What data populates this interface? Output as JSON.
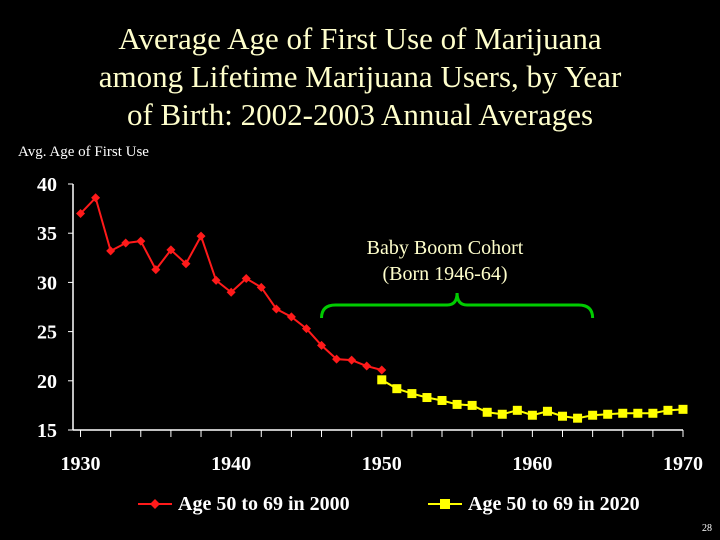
{
  "slide": {
    "title_lines": [
      "Average Age of First Use of Marijuana",
      "among Lifetime Marijuana Users, by Year",
      "of Birth: 2002-2003 Annual Averages"
    ],
    "ylabel": "Avg. Age of First Use",
    "callout_lines": [
      "Baby Boom Cohort",
      "(Born 1946-64)"
    ],
    "slide_number": "28"
  },
  "colors": {
    "background": "#000000",
    "series1": "#ff1a1a",
    "series2": "#ffff00",
    "bracket": "#00cc00",
    "axis": "#ffffff"
  },
  "chart_data": {
    "type": "line",
    "title": "Average Age of First Use of Marijuana among Lifetime Marijuana Users, by Year of Birth: 2002-2003 Annual Averages",
    "ylabel": "Avg. Age of First Use",
    "xlabel": "",
    "xlim": [
      1929.5,
      1970
    ],
    "ylim": [
      15,
      40
    ],
    "x_ticks": [
      "1930",
      "1940",
      "1950",
      "1960",
      "1970"
    ],
    "y_ticks": [
      "40",
      "35",
      "30",
      "25",
      "20",
      "15"
    ],
    "grid": false,
    "legend_position": "bottom",
    "series": [
      {
        "name": "Age 50 to 69 in 2000",
        "marker": "diamond",
        "x": [
          1930,
          1931,
          1932,
          1933,
          1934,
          1935,
          1936,
          1937,
          1938,
          1939,
          1940,
          1941,
          1942,
          1943,
          1944,
          1945,
          1946,
          1947,
          1948,
          1949,
          1950
        ],
        "y": [
          37.0,
          38.6,
          33.2,
          34.0,
          34.2,
          31.3,
          33.3,
          31.9,
          34.7,
          30.2,
          29.0,
          30.4,
          29.5,
          27.3,
          26.5,
          25.3,
          23.6,
          22.2,
          22.1,
          21.5,
          21.1
        ]
      },
      {
        "name": "Age 50 to 69 in 2020",
        "marker": "square",
        "x": [
          1950,
          1951,
          1952,
          1953,
          1954,
          1955,
          1956,
          1957,
          1958,
          1959,
          1960,
          1961,
          1962,
          1963,
          1964,
          1965,
          1966,
          1967,
          1968,
          1969,
          1970
        ],
        "y": [
          20.1,
          19.2,
          18.7,
          18.3,
          18.0,
          17.6,
          17.5,
          16.8,
          16.6,
          17.0,
          16.5,
          16.9,
          16.4,
          16.2,
          16.5,
          16.6,
          16.7,
          16.7,
          16.7,
          17.0,
          17.1
        ]
      }
    ],
    "annotations": [
      {
        "text": "Baby Boom Cohort (Born 1946-64)",
        "x_range": [
          1946,
          1964
        ],
        "shape": "curly-bracket"
      }
    ]
  }
}
